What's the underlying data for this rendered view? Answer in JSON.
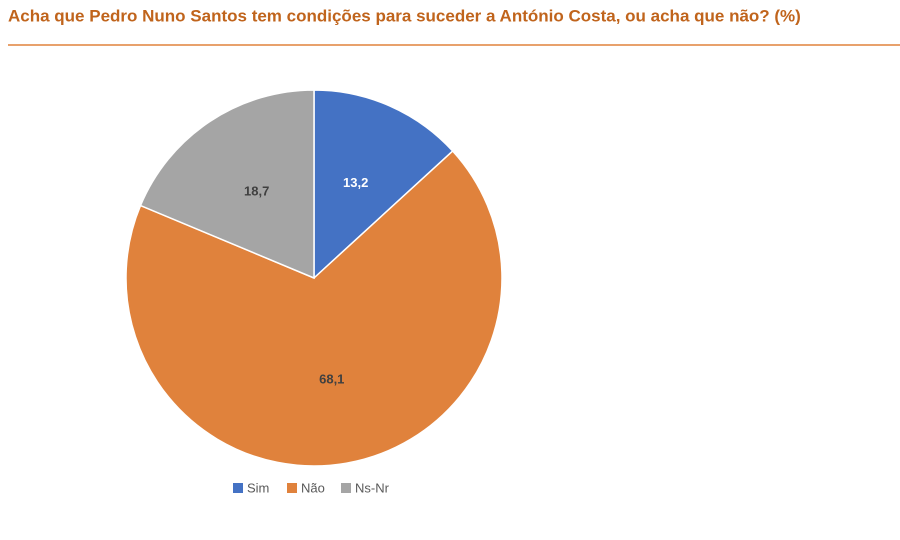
{
  "chart_data": {
    "type": "pie",
    "title": "Acha que Pedro Nuno Santos tem condições para suceder a António Costa, ou acha que não? (%)",
    "categories": [
      "Sim",
      "Não",
      "Ns-Nr"
    ],
    "values": [
      13.2,
      68.1,
      18.7
    ],
    "value_labels": [
      "13,2",
      "68,1",
      "18,7"
    ],
    "colors": [
      "#4472c4",
      "#e0823c",
      "#a5a5a5"
    ],
    "label_colors": [
      "#ffffff",
      "#404040",
      "#404040"
    ],
    "legend": "bottom"
  }
}
